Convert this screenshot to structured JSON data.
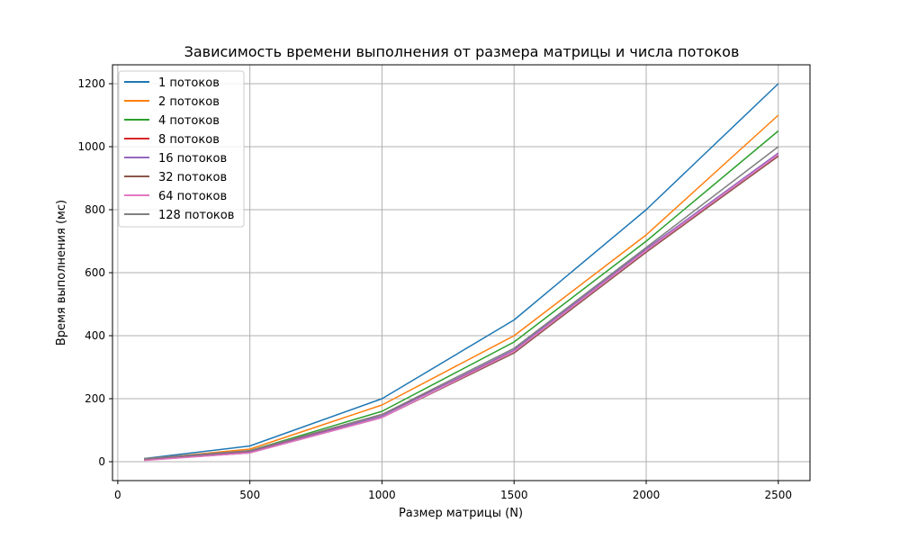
{
  "chart_data": {
    "type": "line",
    "title": "Зависимость времени выполнения от размера матрицы и числа потоков",
    "xlabel": "Размер матрицы (N)",
    "ylabel": "Время выполнения (мс)",
    "x": [
      100,
      500,
      1000,
      1500,
      2000,
      2500
    ],
    "xlim": [
      -20,
      2620
    ],
    "ylim": [
      -60,
      1260
    ],
    "xticks": [
      0,
      500,
      1000,
      1500,
      2000,
      2500
    ],
    "yticks": [
      0,
      200,
      400,
      600,
      800,
      1000,
      1200
    ],
    "grid": true,
    "legend_position": "top-left",
    "series": [
      {
        "name": "1 потоков",
        "color": "#1f77b4",
        "values": [
          10,
          50,
          200,
          450,
          800,
          1200
        ]
      },
      {
        "name": "2 потоков",
        "color": "#ff7f0e",
        "values": [
          8,
          40,
          180,
          400,
          720,
          1100
        ]
      },
      {
        "name": "4 потоков",
        "color": "#2ca02c",
        "values": [
          7,
          35,
          160,
          380,
          700,
          1050
        ]
      },
      {
        "name": "8 потоков",
        "color": "#d62728",
        "values": [
          6,
          32,
          150,
          350,
          670,
          970
        ]
      },
      {
        "name": "16 потоков",
        "color": "#9467bd",
        "values": [
          6,
          30,
          145,
          355,
          675,
          980
        ]
      },
      {
        "name": "32 потоков",
        "color": "#8c564b",
        "values": [
          5,
          28,
          140,
          345,
          665,
          970
        ]
      },
      {
        "name": "64 потоков",
        "color": "#e377c2",
        "values": [
          4,
          28,
          140,
          350,
          670,
          975
        ]
      },
      {
        "name": "128 потоков",
        "color": "#7f7f7f",
        "values": [
          10,
          35,
          150,
          360,
          680,
          1000
        ]
      }
    ]
  }
}
